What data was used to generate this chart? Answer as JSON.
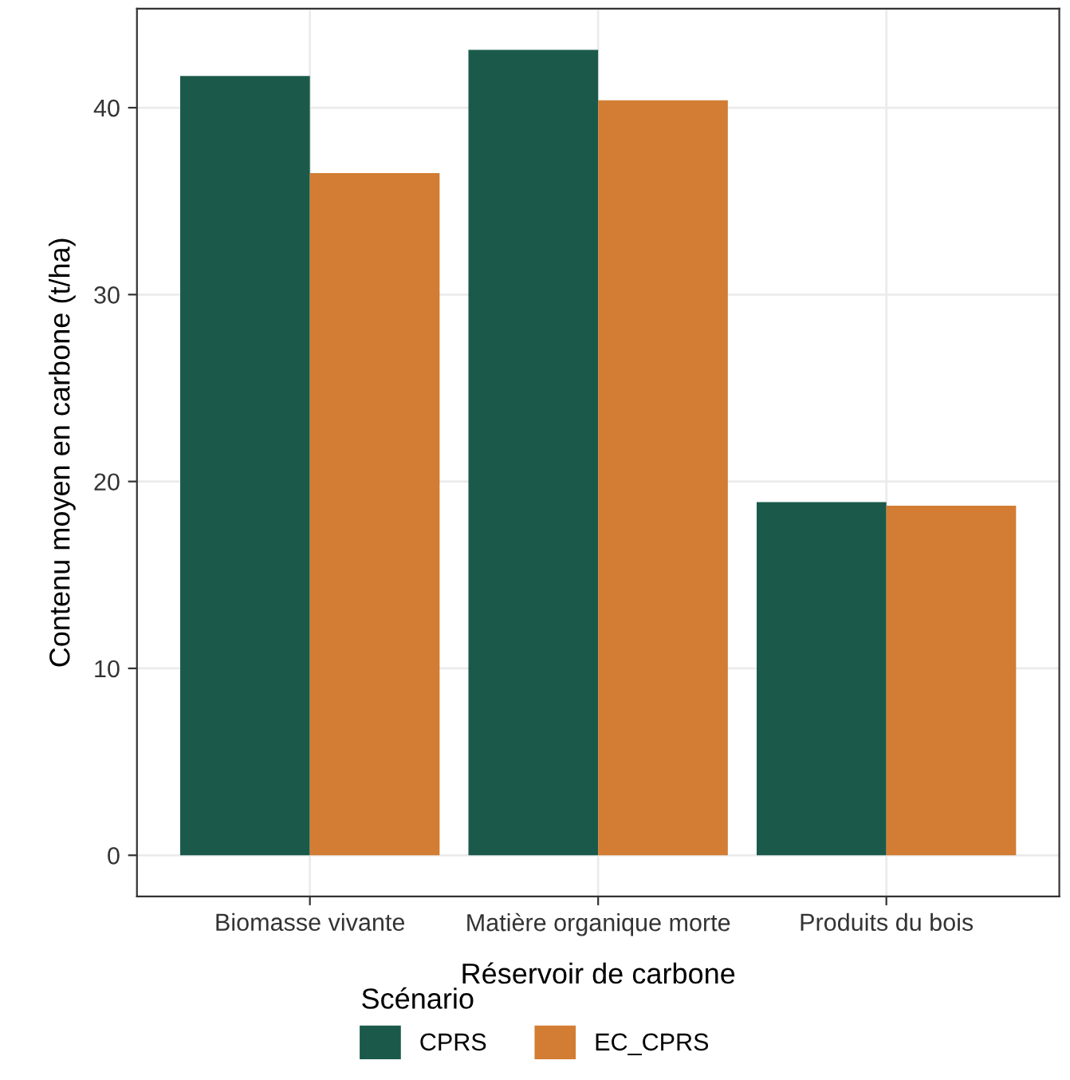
{
  "chart_data": {
    "type": "bar",
    "xlabel": "Réservoir de carbone",
    "ylabel": "Contenu moyen en carbone (t/ha)",
    "legend_title": "Scénario",
    "categories": [
      "Biomasse vivante",
      "Matière organique morte",
      "Produits du bois"
    ],
    "series": [
      {
        "name": "CPRS",
        "color": "#1b5a4a",
        "values": [
          41.7,
          43.1,
          18.9
        ]
      },
      {
        "name": "EC_CPRS",
        "color": "#d27d33",
        "values": [
          36.5,
          40.4,
          18.7
        ]
      }
    ],
    "ylim": [
      -2.2,
      45.3
    ],
    "yticks": [
      0,
      10,
      20,
      30,
      40
    ],
    "grid": true,
    "legend": "bottom"
  }
}
